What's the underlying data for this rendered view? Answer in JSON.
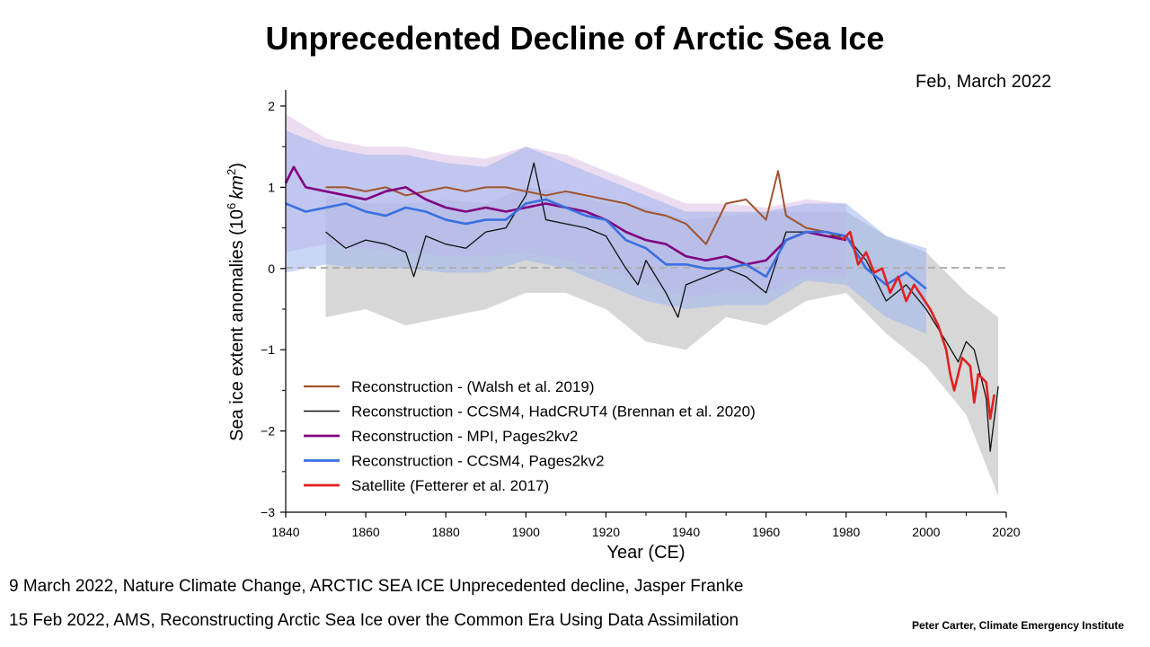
{
  "slide": {
    "title": "Unprecedented Decline of Arctic Sea Ice",
    "date": "Feb, March 2022",
    "citation1": "9 March 2022, Nature Climate Change, ARCTIC SEA ICE Unprecedented decline, Jasper Franke",
    "citation2": "15 Feb 2022, AMS, Reconstructing Arctic Sea Ice over the Common Era Using Data Assimilation",
    "credit": "Peter Carter, Climate Emergency Institute"
  },
  "chart_data": {
    "type": "line",
    "title": "",
    "xlabel": "Year (CE)",
    "ylabel_main": "Sea ice extent anomalies (10",
    "ylabel_sup": "6",
    "ylabel_unit": "km",
    "ylabel_sup2": "2",
    "ylabel_end": ")",
    "xlim": [
      1840,
      2020
    ],
    "ylim": [
      -3,
      2.2
    ],
    "xticks": [
      1840,
      1860,
      1880,
      1900,
      1920,
      1940,
      1960,
      1980,
      2000,
      2020
    ],
    "yticks": [
      2,
      1,
      0,
      -1,
      -2,
      -3
    ],
    "xtick_labels": [
      "1840",
      "1860",
      "1880",
      "1900",
      "1920",
      "1940",
      "1960",
      "1980",
      "2000",
      "2020"
    ],
    "ytick_labels": [
      "2",
      "1",
      "0",
      "−1",
      "−2",
      "−3"
    ],
    "zero_line": true,
    "legend_position": "lower-left",
    "colors": {
      "walsh": "#a0522d",
      "ccsm4_hadcrut": "#111111",
      "mpi": "#800080",
      "ccsm4_pages": "#3a6fe0",
      "satellite": "#e02020",
      "grey_band": "#d3d3d3",
      "blue_band": "#9db4ec",
      "purple_band": "#dcc0e6"
    },
    "series": [
      {
        "key": "walsh",
        "name": "Reconstruction - (Walsh et al. 2019)",
        "x": [
          1850,
          1855,
          1860,
          1865,
          1870,
          1875,
          1880,
          1885,
          1890,
          1895,
          1900,
          1905,
          1910,
          1915,
          1920,
          1925,
          1930,
          1935,
          1940,
          1945,
          1950,
          1955,
          1960,
          1963,
          1965,
          1970,
          1975,
          1980
        ],
        "y": [
          1.0,
          1.0,
          0.95,
          1.0,
          0.9,
          0.95,
          1.0,
          0.95,
          1.0,
          1.0,
          0.95,
          0.9,
          0.95,
          0.9,
          0.85,
          0.8,
          0.7,
          0.65,
          0.55,
          0.3,
          0.8,
          0.85,
          0.6,
          1.2,
          0.65,
          0.5,
          0.45,
          0.35
        ]
      },
      {
        "key": "ccsm4_hadcrut",
        "name": "Reconstruction - CCSM4, HadCRUT4 (Brennan et al. 2020)",
        "x": [
          1850,
          1855,
          1860,
          1865,
          1870,
          1872,
          1875,
          1880,
          1885,
          1890,
          1895,
          1900,
          1902,
          1905,
          1910,
          1915,
          1920,
          1925,
          1928,
          1930,
          1935,
          1938,
          1940,
          1945,
          1950,
          1955,
          1960,
          1965,
          1970,
          1975,
          1980,
          1985,
          1990,
          1995,
          2000,
          2005,
          2008,
          2010,
          2012,
          2015,
          2016,
          2018
        ],
        "y": [
          0.45,
          0.25,
          0.35,
          0.3,
          0.2,
          -0.1,
          0.4,
          0.3,
          0.25,
          0.45,
          0.5,
          0.9,
          1.3,
          0.6,
          0.55,
          0.5,
          0.4,
          0.0,
          -0.2,
          0.1,
          -0.3,
          -0.6,
          -0.2,
          -0.1,
          0.0,
          -0.1,
          -0.3,
          0.45,
          0.45,
          0.4,
          0.4,
          0.1,
          -0.4,
          -0.2,
          -0.5,
          -0.9,
          -1.15,
          -0.9,
          -1.0,
          -1.6,
          -2.25,
          -1.45
        ]
      },
      {
        "key": "mpi",
        "name": "Reconstruction - MPI, Pages2kv2",
        "x": [
          1840,
          1842,
          1845,
          1850,
          1855,
          1860,
          1865,
          1870,
          1875,
          1880,
          1885,
          1890,
          1895,
          1900,
          1905,
          1910,
          1915,
          1920,
          1925,
          1930,
          1935,
          1940,
          1945,
          1950,
          1955,
          1960,
          1965,
          1970,
          1975,
          1980
        ],
        "y": [
          1.05,
          1.25,
          1.0,
          0.95,
          0.9,
          0.85,
          0.95,
          1.0,
          0.85,
          0.75,
          0.7,
          0.75,
          0.7,
          0.75,
          0.8,
          0.75,
          0.7,
          0.6,
          0.45,
          0.35,
          0.3,
          0.15,
          0.1,
          0.15,
          0.05,
          0.1,
          0.35,
          0.45,
          0.4,
          0.35
        ]
      },
      {
        "key": "ccsm4_pages",
        "name": "Reconstruction - CCSM4, Pages2kv2",
        "x": [
          1840,
          1845,
          1850,
          1855,
          1860,
          1865,
          1870,
          1875,
          1880,
          1885,
          1890,
          1895,
          1900,
          1905,
          1910,
          1915,
          1920,
          1925,
          1930,
          1935,
          1940,
          1945,
          1950,
          1955,
          1960,
          1965,
          1970,
          1975,
          1980,
          1985,
          1990,
          1995,
          2000
        ],
        "y": [
          0.8,
          0.7,
          0.75,
          0.8,
          0.7,
          0.65,
          0.75,
          0.7,
          0.6,
          0.55,
          0.6,
          0.6,
          0.8,
          0.85,
          0.75,
          0.65,
          0.6,
          0.35,
          0.25,
          0.05,
          0.05,
          0.0,
          0.0,
          0.05,
          -0.1,
          0.35,
          0.45,
          0.45,
          0.4,
          0.0,
          -0.2,
          -0.05,
          -0.25
        ]
      },
      {
        "key": "satellite",
        "name": "Satellite (Fetterer et al. 2017)",
        "x": [
          1979,
          1981,
          1983,
          1985,
          1987,
          1989,
          1991,
          1993,
          1995,
          1997,
          1999,
          2001,
          2003,
          2005,
          2006,
          2007,
          2009,
          2011,
          2012,
          2013,
          2015,
          2016,
          2017
        ],
        "y": [
          0.35,
          0.45,
          0.05,
          0.2,
          -0.05,
          0.0,
          -0.3,
          -0.1,
          -0.4,
          -0.2,
          -0.35,
          -0.5,
          -0.7,
          -1.0,
          -1.3,
          -1.5,
          -1.1,
          -1.2,
          -1.65,
          -1.3,
          -1.4,
          -1.85,
          -1.55
        ]
      }
    ],
    "bands": [
      {
        "key": "grey_band",
        "x": [
          1850,
          1860,
          1870,
          1880,
          1890,
          1900,
          1910,
          1920,
          1930,
          1940,
          1950,
          1960,
          1970,
          1980,
          1990,
          2000,
          2010,
          2018
        ],
        "upper": [
          0.9,
          0.8,
          0.8,
          0.85,
          0.8,
          1.0,
          0.95,
          0.8,
          0.75,
          0.6,
          0.65,
          0.7,
          0.7,
          0.7,
          0.4,
          0.2,
          -0.3,
          -0.6
        ],
        "lower": [
          -0.6,
          -0.5,
          -0.7,
          -0.6,
          -0.5,
          -0.3,
          -0.3,
          -0.5,
          -0.9,
          -1.0,
          -0.6,
          -0.7,
          -0.4,
          -0.3,
          -0.8,
          -1.2,
          -1.8,
          -2.8
        ]
      },
      {
        "key": "purple_band",
        "x": [
          1840,
          1850,
          1860,
          1870,
          1880,
          1890,
          1900,
          1910,
          1920,
          1930,
          1940,
          1950,
          1960,
          1970,
          1980
        ],
        "upper": [
          1.9,
          1.6,
          1.5,
          1.5,
          1.4,
          1.35,
          1.5,
          1.4,
          1.2,
          1.0,
          0.8,
          0.8,
          0.75,
          0.85,
          0.8
        ],
        "lower": [
          0.2,
          0.3,
          0.25,
          0.2,
          0.15,
          0.15,
          0.2,
          0.1,
          0.0,
          -0.2,
          -0.35,
          -0.3,
          -0.3,
          -0.1,
          -0.1
        ]
      },
      {
        "key": "blue_band",
        "x": [
          1840,
          1850,
          1860,
          1870,
          1880,
          1890,
          1900,
          1910,
          1920,
          1930,
          1940,
          1950,
          1960,
          1970,
          1980,
          1990,
          2000
        ],
        "upper": [
          1.7,
          1.5,
          1.4,
          1.4,
          1.3,
          1.25,
          1.5,
          1.3,
          1.1,
          0.9,
          0.7,
          0.7,
          0.7,
          0.8,
          0.8,
          0.4,
          0.25
        ],
        "lower": [
          -0.05,
          0.05,
          0.0,
          0.0,
          -0.05,
          -0.05,
          0.1,
          0.0,
          -0.2,
          -0.4,
          -0.5,
          -0.45,
          -0.45,
          -0.15,
          -0.2,
          -0.6,
          -0.8
        ]
      }
    ]
  }
}
